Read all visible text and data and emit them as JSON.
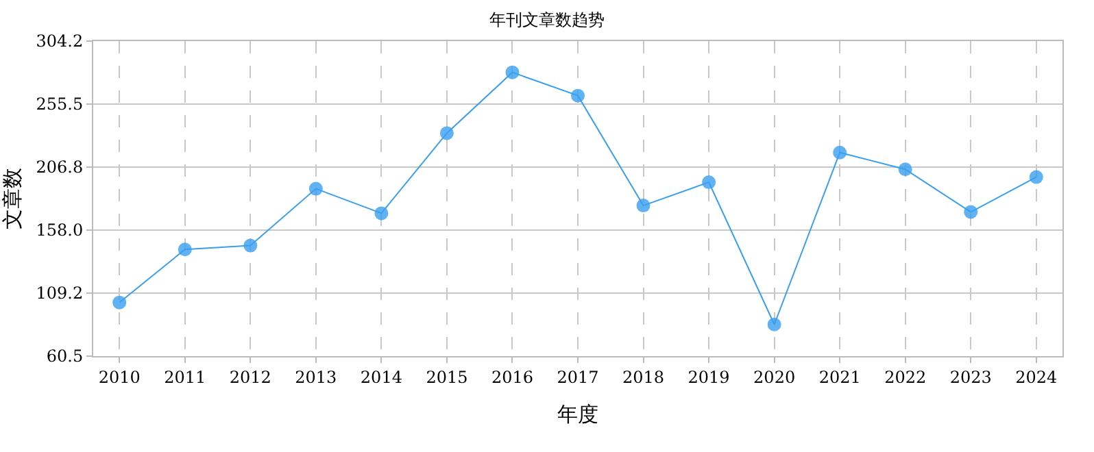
{
  "chart_data": {
    "type": "line",
    "title": "年刊文章数趋势",
    "xlabel": "年度",
    "ylabel": "文章数",
    "categories": [
      "2010",
      "2011",
      "2012",
      "2013",
      "2014",
      "2015",
      "2016",
      "2017",
      "2018",
      "2019",
      "2020",
      "2021",
      "2022",
      "2023",
      "2024"
    ],
    "series": [
      {
        "color": "#3a9ff0",
        "values": [
          102,
          143,
          146,
          190,
          171,
          233,
          280,
          262,
          177,
          195,
          85,
          218,
          205,
          172,
          199
        ]
      }
    ],
    "ylim": [
      60.5,
      304.2
    ],
    "yticks": [
      60.5,
      109.2,
      {
        "value": 158,
        "label": "158.0"
      },
      206.8,
      255.5,
      304.2
    ],
    "grid": true,
    "marker": "circle",
    "line_style": "solid"
  }
}
